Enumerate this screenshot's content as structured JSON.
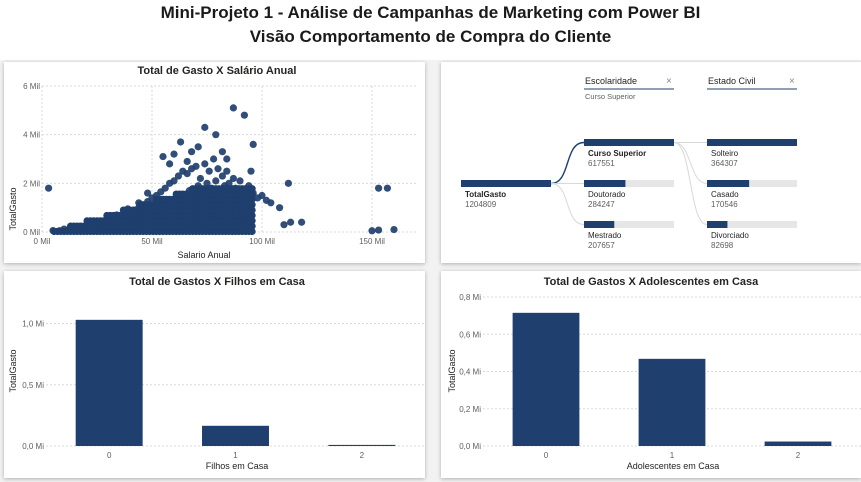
{
  "header": {
    "title": "Mini-Projeto 1 - Análise de Campanhas de Marketing com Power BI",
    "subtitle": "Visão Comportamento de Compra do Cliente"
  },
  "colors": {
    "primary": "#1f3f6e",
    "track": "#e6e6e6",
    "connector": "#1f3f6e"
  },
  "scatter": {
    "title": "Total de Gasto X Salário Anual",
    "xlabel": "Salario Anual",
    "ylabel": "TotalGasto",
    "xticks": [
      "0 Mil",
      "50 Mil",
      "100 Mil",
      "150 Mil"
    ],
    "yticks": [
      "0 Mil",
      "2 Mil",
      "4 Mil",
      "6 Mil"
    ],
    "chart_data": {
      "type": "scatter",
      "xlim": [
        0,
        170000
      ],
      "ylim": [
        0,
        6000
      ],
      "x_unit": "Salario Anual",
      "y_unit": "TotalGasto",
      "points": [
        [
          3000,
          1800
        ],
        [
          5000,
          60
        ],
        [
          8000,
          50
        ],
        [
          10000,
          120
        ],
        [
          12000,
          90
        ],
        [
          14000,
          150
        ],
        [
          15000,
          60
        ],
        [
          17000,
          110
        ],
        [
          18000,
          200
        ],
        [
          20000,
          80
        ],
        [
          21000,
          250
        ],
        [
          22000,
          140
        ],
        [
          23000,
          60
        ],
        [
          24000,
          300
        ],
        [
          25000,
          180
        ],
        [
          26000,
          90
        ],
        [
          27000,
          260
        ],
        [
          28000,
          120
        ],
        [
          29000,
          350
        ],
        [
          30000,
          200
        ],
        [
          31000,
          420
        ],
        [
          32000,
          150
        ],
        [
          33000,
          300
        ],
        [
          34000,
          500
        ],
        [
          35000,
          250
        ],
        [
          36000,
          600
        ],
        [
          37000,
          350
        ],
        [
          38000,
          700
        ],
        [
          39000,
          450
        ],
        [
          40000,
          800
        ],
        [
          41000,
          300
        ],
        [
          42000,
          900
        ],
        [
          43000,
          500
        ],
        [
          44000,
          1000
        ],
        [
          45000,
          650
        ],
        [
          46000,
          1100
        ],
        [
          47000,
          400
        ],
        [
          48000,
          1250
        ],
        [
          49000,
          800
        ],
        [
          50000,
          1400
        ],
        [
          51000,
          600
        ],
        [
          52000,
          1500
        ],
        [
          53000,
          900
        ],
        [
          54000,
          1650
        ],
        [
          55000,
          1100
        ],
        [
          56000,
          1800
        ],
        [
          57000,
          700
        ],
        [
          58000,
          2000
        ],
        [
          59000,
          1300
        ],
        [
          60000,
          2100
        ],
        [
          61000,
          1000
        ],
        [
          62000,
          2300
        ],
        [
          63000,
          1500
        ],
        [
          64000,
          2500
        ],
        [
          65000,
          1200
        ],
        [
          66000,
          2400
        ],
        [
          67000,
          1700
        ],
        [
          68000,
          2600
        ],
        [
          69000,
          1400
        ],
        [
          70000,
          2700
        ],
        [
          71000,
          1900
        ],
        [
          72000,
          2200
        ],
        [
          73000,
          1600
        ],
        [
          74000,
          2800
        ],
        [
          75000,
          2000
        ],
        [
          76000,
          2500
        ],
        [
          77000,
          1800
        ],
        [
          78000,
          3000
        ],
        [
          79000,
          2100
        ],
        [
          80000,
          2600
        ],
        [
          81000,
          1700
        ],
        [
          82000,
          2300
        ],
        [
          83000,
          1900
        ],
        [
          84000,
          2500
        ],
        [
          85000,
          2000
        ],
        [
          86000,
          1600
        ],
        [
          87000,
          2200
        ],
        [
          88000,
          1800
        ],
        [
          89000,
          1500
        ],
        [
          90000,
          2100
        ],
        [
          92000,
          1700
        ],
        [
          94000,
          1900
        ],
        [
          96000,
          1600
        ],
        [
          98000,
          1400
        ],
        [
          100000,
          1500
        ],
        [
          102000,
          1300
        ],
        [
          104000,
          1200
        ],
        [
          108000,
          1000
        ],
        [
          110000,
          300
        ],
        [
          113000,
          400
        ],
        [
          63000,
          3700
        ],
        [
          71000,
          3500
        ],
        [
          60000,
          3200
        ],
        [
          79000,
          4000
        ],
        [
          87000,
          5100
        ],
        [
          92000,
          4800
        ],
        [
          74000,
          4300
        ],
        [
          55000,
          3100
        ],
        [
          68000,
          3300
        ],
        [
          84000,
          3000
        ],
        [
          58000,
          2800
        ],
        [
          95000,
          2500
        ],
        [
          48000,
          1600
        ],
        [
          44000,
          1200
        ],
        [
          39000,
          950
        ],
        [
          34000,
          700
        ],
        [
          28000,
          450
        ],
        [
          24000,
          320
        ],
        [
          19000,
          200
        ],
        [
          15000,
          140
        ],
        [
          153000,
          1800
        ],
        [
          157000,
          1800
        ],
        [
          150000,
          50
        ],
        [
          153000,
          80
        ],
        [
          160000,
          100
        ],
        [
          112000,
          2000
        ],
        [
          118000,
          400
        ],
        [
          96000,
          3600
        ],
        [
          66000,
          2900
        ],
        [
          82000,
          3300
        ]
      ]
    }
  },
  "decomp": {
    "level1_header": "Escolaridade",
    "level1_filter": "Curso Superior",
    "level2_header": "Estado Civil",
    "root": {
      "name": "TotalGasto",
      "value": "1204809",
      "amount": 1204809
    },
    "level1": [
      {
        "name": "Curso Superior",
        "value": "617551",
        "amount": 617551,
        "selected": true
      },
      {
        "name": "Doutorado",
        "value": "284247",
        "amount": 284247,
        "selected": false
      },
      {
        "name": "Mestrado",
        "value": "207657",
        "amount": 207657,
        "selected": false
      }
    ],
    "level2": [
      {
        "name": "Solteiro",
        "value": "364307",
        "amount": 364307
      },
      {
        "name": "Casado",
        "value": "170546",
        "amount": 170546
      },
      {
        "name": "Divorciado",
        "value": "82698",
        "amount": 82698
      }
    ]
  },
  "filhos": {
    "title": "Total de Gastos X Filhos em Casa",
    "xlabel": "Filhos em Casa",
    "ylabel": "TotalGasto",
    "yticks": [
      "0,0 Mi",
      "0,5 Mi",
      "1,0 Mi"
    ],
    "chart_data": {
      "type": "bar",
      "categories": [
        "0",
        "1",
        "2"
      ],
      "values": [
        1030000,
        165000,
        9000
      ],
      "ylim": [
        0,
        1200000
      ],
      "ytick_values": [
        0,
        500000,
        1000000
      ]
    }
  },
  "adolescentes": {
    "title": "Total de Gastos X Adolescentes em Casa",
    "xlabel": "Adolescentes em Casa",
    "ylabel": "TotalGasto",
    "yticks": [
      "0,0 Mi",
      "0,2 Mi",
      "0,4 Mi",
      "0,6 Mi",
      "0,8 Mi"
    ],
    "chart_data": {
      "type": "bar",
      "categories": [
        "0",
        "1",
        "2"
      ],
      "values": [
        715000,
        468000,
        24000
      ],
      "ylim": [
        0,
        800000
      ],
      "ytick_values": [
        0,
        200000,
        400000,
        600000,
        800000
      ]
    }
  }
}
